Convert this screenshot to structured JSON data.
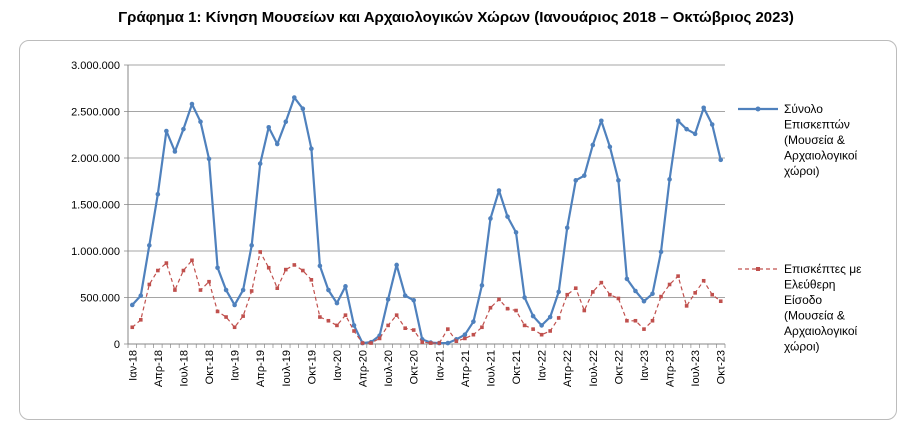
{
  "title": "Γράφημα 1: Κίνηση Μουσείων και Αρχαιολογικών Χώρων (Ιανουάριος 2018 – Οκτώβριος 2023)",
  "chart_data": {
    "type": "line",
    "title": "Γράφημα 1: Κίνηση Μουσείων και Αρχαιολογικών Χώρων (Ιανουάριος 2018 – Οκτώβριος 2023)",
    "xlabel": "",
    "ylabel": "",
    "ylim": [
      0,
      3000000
    ],
    "yticks": [
      "0",
      "500.000",
      "1.000.000",
      "1.500.000",
      "2.000.000",
      "2.500.000",
      "3.000.000"
    ],
    "grid": "horizontal",
    "legend_position": "right",
    "x": [
      "Ιαν-18",
      "Φεβ-18",
      "Μαρ-18",
      "Απρ-18",
      "Μαϊ-18",
      "Ιουν-18",
      "Ιουλ-18",
      "Αυγ-18",
      "Σεπ-18",
      "Οκτ-18",
      "Νοε-18",
      "Δεκ-18",
      "Ιαν-19",
      "Φεβ-19",
      "Μαρ-19",
      "Απρ-19",
      "Μαϊ-19",
      "Ιουν-19",
      "Ιουλ-19",
      "Αυγ-19",
      "Σεπ-19",
      "Οκτ-19",
      "Νοε-19",
      "Δεκ-19",
      "Ιαν-20",
      "Φεβ-20",
      "Μαρ-20",
      "Απρ-20",
      "Μαϊ-20",
      "Ιουν-20",
      "Ιουλ-20",
      "Αυγ-20",
      "Σεπ-20",
      "Οκτ-20",
      "Νοε-20",
      "Δεκ-20",
      "Ιαν-21",
      "Φεβ-21",
      "Μαρ-21",
      "Απρ-21",
      "Μαϊ-21",
      "Ιουν-21",
      "Ιουλ-21",
      "Αυγ-21",
      "Σεπ-21",
      "Οκτ-21",
      "Νοε-21",
      "Δεκ-21",
      "Ιαν-22",
      "Φεβ-22",
      "Μαρ-22",
      "Απρ-22",
      "Μαϊ-22",
      "Ιουν-22",
      "Ιουλ-22",
      "Αυγ-22",
      "Σεπ-22",
      "Οκτ-22",
      "Νοε-22",
      "Δεκ-22",
      "Ιαν-23",
      "Φεβ-23",
      "Μαρ-23",
      "Απρ-23",
      "Μαϊ-23",
      "Ιουν-23",
      "Ιουλ-23",
      "Αυγ-23",
      "Σεπ-23",
      "Οκτ-23"
    ],
    "tick_labels": [
      {
        "index": 0,
        "label": "Ιαν-18"
      },
      {
        "index": 3,
        "label": "Απρ-18"
      },
      {
        "index": 6,
        "label": "Ιουλ-18"
      },
      {
        "index": 9,
        "label": "Οκτ-18"
      },
      {
        "index": 12,
        "label": "Ιαν-19"
      },
      {
        "index": 15,
        "label": "Απρ-19"
      },
      {
        "index": 18,
        "label": "Ιουλ-19"
      },
      {
        "index": 21,
        "label": "Οκτ-19"
      },
      {
        "index": 24,
        "label": "Ιαν-20"
      },
      {
        "index": 27,
        "label": "Απρ-20"
      },
      {
        "index": 30,
        "label": "Ιουλ-20"
      },
      {
        "index": 33,
        "label": "Οκτ-20"
      },
      {
        "index": 36,
        "label": "Ιαν-21"
      },
      {
        "index": 39,
        "label": "Απρ-21"
      },
      {
        "index": 42,
        "label": "Ιουλ-21"
      },
      {
        "index": 45,
        "label": "Οκτ-21"
      },
      {
        "index": 48,
        "label": "Ιαν-22"
      },
      {
        "index": 51,
        "label": "Απρ-22"
      },
      {
        "index": 54,
        "label": "Ιουλ-22"
      },
      {
        "index": 57,
        "label": "Οκτ-22"
      },
      {
        "index": 60,
        "label": "Ιαν-23"
      },
      {
        "index": 63,
        "label": "Απρ-23"
      },
      {
        "index": 66,
        "label": "Ιουλ-23"
      },
      {
        "index": 69,
        "label": "Οκτ-23"
      }
    ],
    "series": [
      {
        "name": "Σύνολο Επισκεπτών (Μουσεία & Αρχαιολογικοί χώροι)",
        "legend_lines": [
          "Σύνολο",
          "Επισκεπτών",
          "(Μουσεία &",
          "Αρχαιολογικοί",
          "χώροι)"
        ],
        "color": "#4f81bd",
        "style": "solid",
        "marker": "circle",
        "values": [
          420000,
          520000,
          1060000,
          1610000,
          2290000,
          2070000,
          2310000,
          2580000,
          2390000,
          1990000,
          820000,
          580000,
          420000,
          580000,
          1060000,
          1940000,
          2330000,
          2150000,
          2390000,
          2650000,
          2530000,
          2100000,
          840000,
          580000,
          440000,
          620000,
          200000,
          10000,
          20000,
          90000,
          480000,
          850000,
          520000,
          470000,
          50000,
          15000,
          10000,
          10000,
          50000,
          100000,
          240000,
          630000,
          1350000,
          1650000,
          1370000,
          1200000,
          500000,
          300000,
          200000,
          290000,
          560000,
          1250000,
          1760000,
          1810000,
          2140000,
          2400000,
          2120000,
          1760000,
          700000,
          570000,
          460000,
          540000,
          990000,
          1770000,
          2400000,
          2310000,
          2260000,
          2540000,
          2360000,
          1980000
        ]
      },
      {
        "name": "Επισκέπτες με Ελεύθερη Είσοδο (Μουσεία & Αρχαιολογικοί χώροι)",
        "legend_lines": [
          "Επισκέπτες με",
          "Ελεύθερη",
          "Είσοδο",
          "(Μουσεία &",
          "Αρχαιολογικοί",
          "χώροι)"
        ],
        "color": "#c0504d",
        "style": "dashed",
        "marker": "square",
        "values": [
          180000,
          260000,
          640000,
          790000,
          870000,
          580000,
          790000,
          900000,
          580000,
          670000,
          350000,
          290000,
          180000,
          300000,
          570000,
          990000,
          820000,
          600000,
          800000,
          850000,
          790000,
          690000,
          290000,
          250000,
          200000,
          310000,
          140000,
          10000,
          10000,
          60000,
          200000,
          310000,
          170000,
          150000,
          20000,
          10000,
          10000,
          160000,
          30000,
          60000,
          100000,
          180000,
          390000,
          480000,
          380000,
          360000,
          200000,
          160000,
          100000,
          140000,
          280000,
          530000,
          600000,
          360000,
          560000,
          660000,
          530000,
          490000,
          250000,
          250000,
          160000,
          250000,
          510000,
          640000,
          730000,
          410000,
          550000,
          680000,
          530000,
          460000
        ]
      }
    ]
  }
}
